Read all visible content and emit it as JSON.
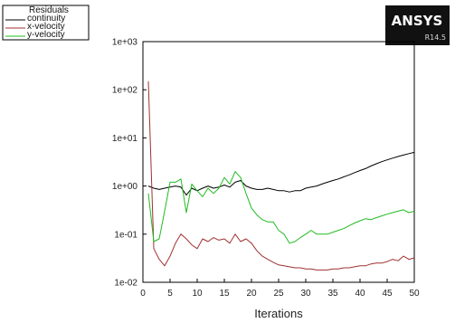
{
  "logo": {
    "name": "ANSYS",
    "version": "R14.5"
  },
  "chart_data": {
    "type": "line",
    "title": "",
    "legend": {
      "title": "Residuals",
      "placement": "top-left",
      "entries": [
        "continuity",
        "x-velocity",
        "y-velocity"
      ]
    },
    "xlabel": "Iterations",
    "ylabel": "",
    "xlim": [
      0,
      50
    ],
    "ylim": [
      0.01,
      1000
    ],
    "yscale": "log",
    "xticks": [
      0,
      5,
      10,
      15,
      20,
      25,
      30,
      35,
      40,
      45,
      50
    ],
    "xtick_labels": [
      "0",
      "5",
      "10",
      "15",
      "20",
      "25",
      "30",
      "35",
      "40",
      "45",
      "50"
    ],
    "yticks": [
      0.01,
      0.1,
      1,
      10,
      100,
      1000
    ],
    "ytick_labels": [
      "1e-02",
      "1e-01",
      "1e+00",
      "1e+01",
      "1e+02",
      "1e+03"
    ],
    "grid": false,
    "series": [
      {
        "name": "continuity",
        "color": "#000000",
        "x": [
          1,
          2,
          3,
          4,
          5,
          6,
          7,
          8,
          9,
          10,
          11,
          12,
          13,
          14,
          15,
          16,
          17,
          18,
          19,
          20,
          21,
          22,
          23,
          24,
          25,
          26,
          27,
          28,
          29,
          30,
          31,
          32,
          33,
          34,
          35,
          36,
          37,
          38,
          39,
          40,
          41,
          42,
          43,
          44,
          45,
          46,
          47,
          48,
          49,
          50
        ],
        "y": [
          1,
          0.9,
          0.85,
          0.9,
          0.95,
          1,
          0.95,
          0.65,
          0.9,
          0.8,
          0.9,
          1,
          0.9,
          0.95,
          1.05,
          0.95,
          1.2,
          1.3,
          1,
          0.9,
          0.85,
          0.85,
          0.9,
          0.85,
          0.8,
          0.8,
          0.75,
          0.8,
          0.8,
          0.9,
          0.95,
          1,
          1.1,
          1.2,
          1.3,
          1.4,
          1.55,
          1.7,
          1.9,
          2.1,
          2.3,
          2.6,
          2.9,
          3.2,
          3.5,
          3.8,
          4.1,
          4.4,
          4.7,
          5
        ]
      },
      {
        "name": "x-velocity",
        "color": "#a03030",
        "x": [
          1,
          2,
          3,
          4,
          5,
          6,
          7,
          8,
          9,
          10,
          11,
          12,
          13,
          14,
          15,
          16,
          17,
          18,
          19,
          20,
          21,
          22,
          23,
          24,
          25,
          26,
          27,
          28,
          29,
          30,
          31,
          32,
          33,
          34,
          35,
          36,
          37,
          38,
          39,
          40,
          41,
          42,
          43,
          44,
          45,
          46,
          47,
          48,
          49,
          50
        ],
        "y": [
          150,
          0.05,
          0.03,
          0.022,
          0.035,
          0.065,
          0.1,
          0.08,
          0.06,
          0.05,
          0.08,
          0.07,
          0.085,
          0.075,
          0.08,
          0.065,
          0.1,
          0.07,
          0.08,
          0.065,
          0.045,
          0.035,
          0.03,
          0.026,
          0.023,
          0.022,
          0.021,
          0.02,
          0.02,
          0.019,
          0.019,
          0.018,
          0.018,
          0.018,
          0.019,
          0.019,
          0.02,
          0.02,
          0.021,
          0.022,
          0.022,
          0.024,
          0.025,
          0.025,
          0.027,
          0.03,
          0.028,
          0.035,
          0.03,
          0.032
        ]
      },
      {
        "name": "y-velocity",
        "color": "#22bb22",
        "x": [
          1,
          2,
          3,
          4,
          5,
          6,
          7,
          8,
          9,
          10,
          11,
          12,
          13,
          14,
          15,
          16,
          17,
          18,
          19,
          20,
          21,
          22,
          23,
          24,
          25,
          26,
          27,
          28,
          29,
          30,
          31,
          32,
          33,
          34,
          35,
          36,
          37,
          38,
          39,
          40,
          41,
          42,
          43,
          44,
          45,
          46,
          47,
          48,
          49,
          50
        ],
        "y": [
          0.7,
          0.07,
          0.08,
          0.3,
          1.2,
          1.2,
          1.4,
          0.28,
          1.1,
          0.8,
          0.6,
          0.9,
          0.7,
          0.9,
          1.5,
          1.1,
          2,
          1.5,
          0.7,
          0.35,
          0.25,
          0.2,
          0.18,
          0.18,
          0.12,
          0.1,
          0.065,
          0.07,
          0.085,
          0.1,
          0.12,
          0.1,
          0.1,
          0.1,
          0.11,
          0.12,
          0.13,
          0.15,
          0.17,
          0.19,
          0.21,
          0.2,
          0.22,
          0.24,
          0.26,
          0.28,
          0.3,
          0.32,
          0.28,
          0.3
        ]
      }
    ]
  }
}
